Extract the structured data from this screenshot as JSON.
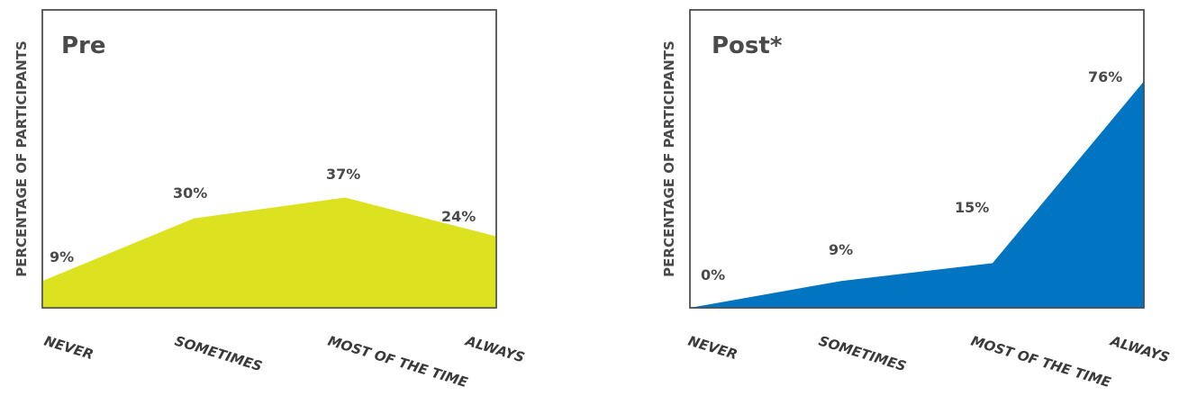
{
  "chart_data": [
    {
      "type": "area",
      "title": "Pre",
      "ylabel": "PERCENTAGE OF PARTICIPANTS",
      "xlabel": "",
      "categories": [
        "NEVER",
        "SOMETIMES",
        "MOST OF THE TIME",
        "ALWAYS"
      ],
      "values": [
        9,
        30,
        37,
        24
      ],
      "data_labels": [
        "9%",
        "30%",
        "37%",
        "24%"
      ],
      "ylim": [
        0,
        100
      ],
      "color": "#dce21f",
      "grid": false,
      "legend": "none"
    },
    {
      "type": "area",
      "title": "Post*",
      "ylabel": "PERCENTAGE OF PARTICIPANTS",
      "xlabel": "",
      "categories": [
        "NEVER",
        "SOMETIMES",
        "MOST OF THE TIME",
        "ALWAYS"
      ],
      "values": [
        0,
        9,
        15,
        76
      ],
      "data_labels": [
        "0%",
        "9%",
        "15%",
        "76%"
      ],
      "ylim": [
        0,
        100
      ],
      "color": "#0175c2",
      "grid": false,
      "legend": "none"
    }
  ]
}
